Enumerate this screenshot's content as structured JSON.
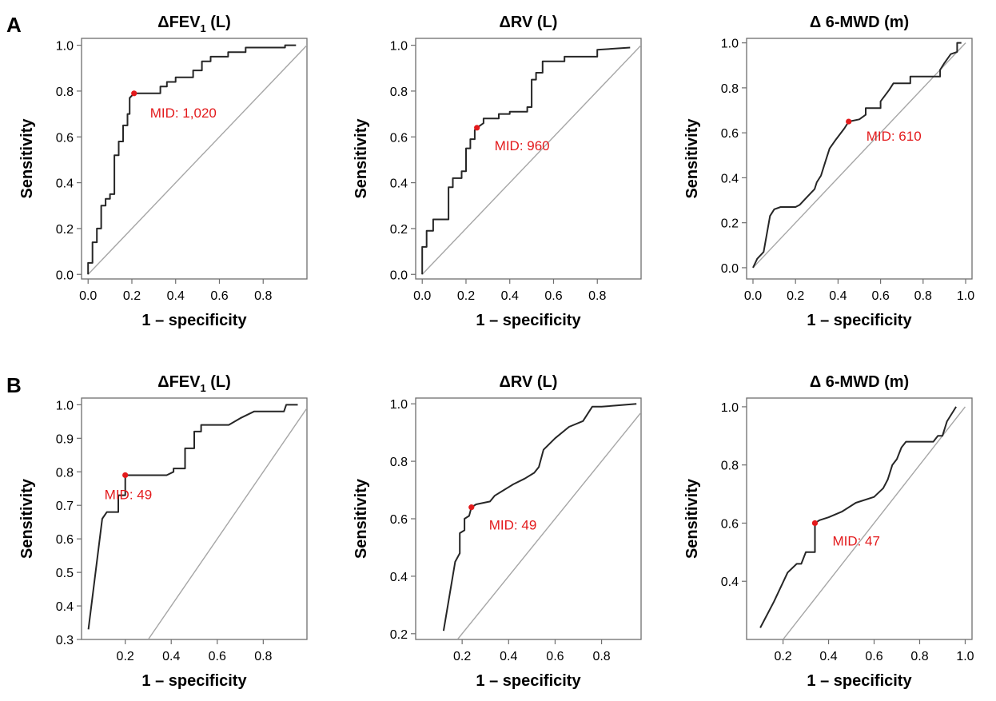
{
  "panel_labels": [
    "A",
    "B"
  ],
  "colors": {
    "curve": "#262626",
    "reference": "#a6a6a6",
    "frame": "#6e6e6e",
    "mid": "#e31a1c",
    "text": "#000000"
  },
  "chart_data": [
    {
      "panel": "A",
      "type": "line",
      "title": "ΔFEV1 (L)",
      "title_base": "ΔFEV",
      "title_sub": "1",
      "title_tail": " (L)",
      "xlabel": "1 – specificity",
      "ylabel": "Sensitivity",
      "xlim": [
        -0.03,
        1.0
      ],
      "ylim": [
        -0.02,
        1.03
      ],
      "xticks": [
        "0.0",
        "0.2",
        "0.4",
        "0.6",
        "0.8"
      ],
      "xtick_values": [
        0.0,
        0.2,
        0.4,
        0.6,
        0.8
      ],
      "yticks": [
        "0.0",
        "0.2",
        "0.4",
        "0.6",
        "0.8",
        "1.0"
      ],
      "ytick_values": [
        0.0,
        0.2,
        0.4,
        0.6,
        0.8,
        1.0
      ],
      "reference_line": [
        [
          0,
          0
        ],
        [
          1.0,
          1.0
        ]
      ],
      "mid_label": "MID: 1,020",
      "mid_point": [
        0.21,
        0.79
      ],
      "roc_x": [
        0,
        0,
        0.02,
        0.02,
        0.04,
        0.04,
        0.06,
        0.06,
        0.08,
        0.08,
        0.1,
        0.1,
        0.12,
        0.12,
        0.14,
        0.14,
        0.16,
        0.16,
        0.18,
        0.18,
        0.19,
        0.19,
        0.21,
        0.33,
        0.33,
        0.36,
        0.36,
        0.4,
        0.4,
        0.48,
        0.48,
        0.52,
        0.52,
        0.56,
        0.56,
        0.64,
        0.64,
        0.72,
        0.72,
        0.9,
        0.9,
        0.95
      ],
      "roc_y": [
        0,
        0.05,
        0.05,
        0.14,
        0.14,
        0.2,
        0.2,
        0.3,
        0.3,
        0.33,
        0.33,
        0.35,
        0.35,
        0.52,
        0.52,
        0.58,
        0.58,
        0.65,
        0.65,
        0.7,
        0.7,
        0.77,
        0.79,
        0.79,
        0.82,
        0.82,
        0.84,
        0.84,
        0.86,
        0.86,
        0.89,
        0.89,
        0.93,
        0.93,
        0.95,
        0.95,
        0.97,
        0.97,
        0.99,
        0.99,
        1.0,
        1.0
      ]
    },
    {
      "panel": "A",
      "type": "line",
      "title": "ΔRV (L)",
      "title_base": "ΔRV (L)",
      "title_sub": "",
      "title_tail": "",
      "xlabel": "1 – specificity",
      "ylabel": "Sensitivity",
      "xlim": [
        -0.03,
        1.0
      ],
      "ylim": [
        -0.02,
        1.03
      ],
      "xticks": [
        "0.0",
        "0.2",
        "0.4",
        "0.6",
        "0.8"
      ],
      "xtick_values": [
        0.0,
        0.2,
        0.4,
        0.6,
        0.8
      ],
      "yticks": [
        "0.0",
        "0.2",
        "0.4",
        "0.6",
        "0.8",
        "1.0"
      ],
      "ytick_values": [
        0.0,
        0.2,
        0.4,
        0.6,
        0.8,
        1.0
      ],
      "reference_line": [
        [
          0,
          0
        ],
        [
          1.0,
          1.0
        ]
      ],
      "mid_label": "MID: 960",
      "mid_point": [
        0.25,
        0.64
      ],
      "roc_x": [
        0,
        0,
        0.02,
        0.02,
        0.05,
        0.05,
        0.12,
        0.12,
        0.14,
        0.14,
        0.18,
        0.18,
        0.2,
        0.2,
        0.22,
        0.22,
        0.24,
        0.24,
        0.25,
        0.28,
        0.28,
        0.35,
        0.35,
        0.4,
        0.4,
        0.48,
        0.48,
        0.5,
        0.5,
        0.52,
        0.52,
        0.55,
        0.55,
        0.65,
        0.65,
        0.8,
        0.8,
        0.95
      ],
      "roc_y": [
        0,
        0.12,
        0.12,
        0.19,
        0.19,
        0.24,
        0.24,
        0.38,
        0.38,
        0.42,
        0.42,
        0.45,
        0.45,
        0.55,
        0.55,
        0.59,
        0.59,
        0.63,
        0.64,
        0.66,
        0.68,
        0.68,
        0.7,
        0.7,
        0.71,
        0.71,
        0.73,
        0.73,
        0.85,
        0.85,
        0.88,
        0.88,
        0.93,
        0.93,
        0.95,
        0.95,
        0.98,
        0.99
      ]
    },
    {
      "panel": "A",
      "type": "line",
      "title": "Δ 6-MWD (m)",
      "title_base": "Δ 6-MWD (m)",
      "title_sub": "",
      "title_tail": "",
      "xlabel": "1 – specificity",
      "ylabel": "Sensitivity",
      "xlim": [
        -0.03,
        1.03
      ],
      "ylim": [
        -0.05,
        1.02
      ],
      "xticks": [
        "0.0",
        "0.2",
        "0.4",
        "0.6",
        "0.8",
        "1.0"
      ],
      "xtick_values": [
        0.0,
        0.2,
        0.4,
        0.6,
        0.8,
        1.0
      ],
      "yticks": [
        "0.0",
        "0.2",
        "0.4",
        "0.6",
        "0.8",
        "1.0"
      ],
      "ytick_values": [
        0.0,
        0.2,
        0.4,
        0.6,
        0.8,
        1.0
      ],
      "reference_line": [
        [
          0,
          0
        ],
        [
          1.0,
          1.0
        ]
      ],
      "mid_label": "MID: 610",
      "mid_point": [
        0.45,
        0.65
      ],
      "roc_x": [
        0,
        0.02,
        0.02,
        0.05,
        0.05,
        0.08,
        0.08,
        0.1,
        0.13,
        0.2,
        0.22,
        0.25,
        0.27,
        0.29,
        0.3,
        0.32,
        0.34,
        0.36,
        0.36,
        0.39,
        0.39,
        0.43,
        0.43,
        0.45,
        0.5,
        0.53,
        0.53,
        0.6,
        0.6,
        0.64,
        0.66,
        0.74,
        0.74,
        0.88,
        0.88,
        0.9,
        0.93,
        0.96,
        0.96,
        0.98
      ],
      "roc_y": [
        0,
        0.04,
        0.04,
        0.07,
        0.07,
        0.23,
        0.23,
        0.26,
        0.27,
        0.27,
        0.28,
        0.31,
        0.33,
        0.35,
        0.38,
        0.41,
        0.47,
        0.53,
        0.53,
        0.57,
        0.57,
        0.62,
        0.62,
        0.65,
        0.66,
        0.68,
        0.71,
        0.71,
        0.74,
        0.79,
        0.82,
        0.82,
        0.85,
        0.85,
        0.88,
        0.91,
        0.95,
        0.96,
        1.0,
        1.0
      ]
    },
    {
      "panel": "B",
      "type": "line",
      "title": "ΔFEV1 (L)",
      "title_base": "ΔFEV",
      "title_sub": "1",
      "title_tail": " (L)",
      "xlabel": "1 – specificity",
      "ylabel": "Sensitivity",
      "xlim": [
        0.01,
        0.99
      ],
      "ylim": [
        0.3,
        1.02
      ],
      "xticks": [
        "0.2",
        "0.4",
        "0.6",
        "0.8"
      ],
      "xtick_values": [
        0.2,
        0.4,
        0.6,
        0.8
      ],
      "yticks": [
        "0.3",
        "0.4",
        "0.5",
        "0.6",
        "0.7",
        "0.8",
        "0.9",
        "1.0"
      ],
      "ytick_values": [
        0.3,
        0.4,
        0.5,
        0.6,
        0.7,
        0.8,
        0.9,
        1.0
      ],
      "reference_line": [
        [
          0.3,
          0.3
        ],
        [
          0.99,
          0.99
        ]
      ],
      "mid_label": "MID: 49",
      "mid_point": [
        0.2,
        0.79
      ],
      "roc_x": [
        0.04,
        0.1,
        0.12,
        0.17,
        0.17,
        0.2,
        0.2,
        0.38,
        0.41,
        0.41,
        0.46,
        0.46,
        0.5,
        0.5,
        0.53,
        0.53,
        0.65,
        0.7,
        0.76,
        0.89,
        0.9,
        0.95
      ],
      "roc_y": [
        0.33,
        0.66,
        0.68,
        0.68,
        0.73,
        0.73,
        0.79,
        0.79,
        0.8,
        0.81,
        0.81,
        0.87,
        0.87,
        0.92,
        0.92,
        0.94,
        0.94,
        0.96,
        0.98,
        0.98,
        1.0,
        1.0
      ]
    },
    {
      "panel": "B",
      "type": "line",
      "title": "ΔRV (L)",
      "title_base": "ΔRV (L)",
      "title_sub": "",
      "title_tail": "",
      "xlabel": "1 – specificity",
      "ylabel": "Sensitivity",
      "xlim": [
        0.0,
        0.97
      ],
      "ylim": [
        0.18,
        1.02
      ],
      "xticks": [
        "0.2",
        "0.4",
        "0.6",
        "0.8"
      ],
      "xtick_values": [
        0.2,
        0.4,
        0.6,
        0.8
      ],
      "yticks": [
        "0.2",
        "0.4",
        "0.6",
        "0.8",
        "1.0"
      ],
      "ytick_values": [
        0.2,
        0.4,
        0.6,
        0.8,
        1.0
      ],
      "reference_line": [
        [
          0.18,
          0.18
        ],
        [
          0.97,
          0.97
        ]
      ],
      "mid_label": "MID: 49",
      "mid_point": [
        0.24,
        0.64
      ],
      "roc_x": [
        0.12,
        0.17,
        0.19,
        0.19,
        0.21,
        0.21,
        0.23,
        0.24,
        0.26,
        0.32,
        0.34,
        0.38,
        0.42,
        0.47,
        0.51,
        0.53,
        0.55,
        0.6,
        0.66,
        0.72,
        0.76,
        0.8,
        0.95
      ],
      "roc_y": [
        0.21,
        0.45,
        0.48,
        0.55,
        0.56,
        0.6,
        0.61,
        0.64,
        0.65,
        0.66,
        0.68,
        0.7,
        0.72,
        0.74,
        0.76,
        0.78,
        0.84,
        0.88,
        0.92,
        0.94,
        0.99,
        0.99,
        1.0
      ]
    },
    {
      "panel": "B",
      "type": "line",
      "title": "Δ 6-MWD (m)",
      "title_base": "Δ 6-MWD (m)",
      "title_sub": "",
      "title_tail": "",
      "xlabel": "1 – specificity",
      "ylabel": "Sensitivity",
      "xlim": [
        0.04,
        1.03
      ],
      "ylim": [
        0.2,
        1.03
      ],
      "xticks": [
        "0.2",
        "0.4",
        "0.6",
        "0.8",
        "1.0"
      ],
      "xtick_values": [
        0.2,
        0.4,
        0.6,
        0.8,
        1.0
      ],
      "yticks": [
        "0.4",
        "0.6",
        "0.8",
        "1.0"
      ],
      "ytick_values": [
        0.4,
        0.6,
        0.8,
        1.0
      ],
      "reference_line": [
        [
          0.2,
          0.2
        ],
        [
          1.0,
          1.0
        ]
      ],
      "mid_label": "MID: 47",
      "mid_point": [
        0.34,
        0.6
      ],
      "roc_x": [
        0.1,
        0.16,
        0.22,
        0.26,
        0.28,
        0.3,
        0.3,
        0.34,
        0.34,
        0.36,
        0.4,
        0.46,
        0.52,
        0.6,
        0.64,
        0.66,
        0.68,
        0.7,
        0.72,
        0.74,
        0.86,
        0.88,
        0.9,
        0.92,
        0.96
      ],
      "roc_y": [
        0.24,
        0.33,
        0.43,
        0.46,
        0.46,
        0.5,
        0.5,
        0.5,
        0.6,
        0.61,
        0.62,
        0.64,
        0.67,
        0.69,
        0.72,
        0.75,
        0.8,
        0.82,
        0.86,
        0.88,
        0.88,
        0.9,
        0.9,
        0.95,
        1.0
      ]
    }
  ]
}
